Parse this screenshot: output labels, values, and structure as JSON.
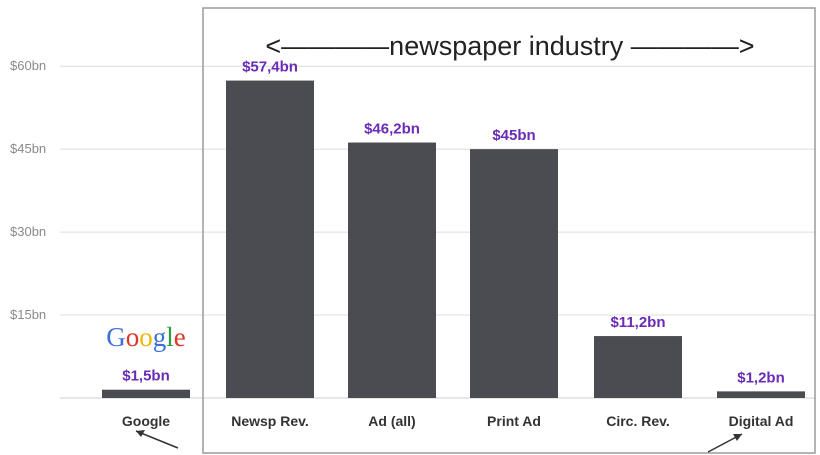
{
  "chart_data": {
    "type": "bar",
    "title": "",
    "xlabel": "",
    "ylabel": "",
    "ylim": [
      0,
      69
    ],
    "yticks": [
      15,
      30,
      45,
      60
    ],
    "ytick_labels": [
      "$15bn",
      "$30bn",
      "$45bn",
      "$60bn"
    ],
    "grid": true,
    "categories": [
      "Google",
      "Newsp Rev.",
      "Ad (all)",
      "Print Ad",
      "Circ. Rev.",
      "Digital Ad"
    ],
    "values": [
      1.5,
      57.4,
      46.2,
      45,
      11.2,
      1.2
    ],
    "data_labels": [
      "$1,5bn",
      "$57,4bn",
      "$46,2bn",
      "$45bn",
      "$11,2bn",
      "$1,2bn"
    ],
    "bracket_annotation": "<————newspaper industry ————>",
    "logo_text": "Google",
    "colors": {
      "bar": "#4a4c51",
      "data_label": "#6a2bb5",
      "grid": "#dcdcdc",
      "frame": "#9a9a9a",
      "logo": [
        "#3b6fd8",
        "#d9372a",
        "#f2b800",
        "#3b6fd8",
        "#2f9d3d",
        "#d9372a"
      ]
    }
  }
}
